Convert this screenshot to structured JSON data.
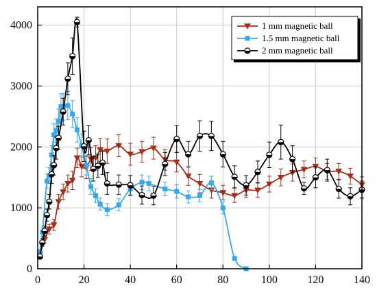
{
  "chart_data": {
    "type": "line",
    "title": "",
    "xlabel": "",
    "ylabel": "",
    "xlim": [
      0,
      140
    ],
    "ylim": [
      0,
      4300
    ],
    "x_ticks": [
      0,
      20,
      40,
      60,
      80,
      100,
      120,
      140
    ],
    "y_ticks": [
      0,
      1000,
      2000,
      3000,
      4000
    ],
    "grid": true,
    "legend_position": "top-right",
    "series": [
      {
        "name": "1 mm magnetic ball",
        "color": "#a0301c",
        "marker": "triangle-down",
        "points": [
          [
            1,
            230
          ],
          [
            3,
            480
          ],
          [
            5,
            650
          ],
          [
            7,
            720
          ],
          [
            9,
            1100
          ],
          [
            11,
            1260
          ],
          [
            13,
            1400
          ],
          [
            15,
            1450
          ],
          [
            17,
            1820
          ],
          [
            19,
            1680
          ],
          [
            21,
            1660
          ],
          [
            23,
            1800
          ],
          [
            25,
            1820
          ],
          [
            27,
            1950
          ],
          [
            30,
            1930
          ],
          [
            35,
            2020
          ],
          [
            40,
            1880
          ],
          [
            45,
            1920
          ],
          [
            50,
            1980
          ],
          [
            55,
            1790
          ],
          [
            60,
            1750
          ],
          [
            65,
            1520
          ],
          [
            70,
            1400
          ],
          [
            75,
            1290
          ],
          [
            80,
            1250
          ],
          [
            85,
            1200
          ],
          [
            90,
            1290
          ],
          [
            95,
            1290
          ],
          [
            100,
            1390
          ],
          [
            105,
            1500
          ],
          [
            110,
            1580
          ],
          [
            115,
            1630
          ],
          [
            120,
            1680
          ],
          [
            125,
            1600
          ],
          [
            130,
            1600
          ],
          [
            135,
            1520
          ],
          [
            140,
            1380
          ]
        ],
        "errors": [
          30,
          60,
          80,
          90,
          120,
          130,
          140,
          150,
          160,
          170,
          180,
          190,
          200,
          190,
          200,
          180,
          180,
          170,
          180,
          170,
          160,
          150,
          150,
          130,
          120,
          110,
          120,
          120,
          130,
          140,
          140,
          140,
          140,
          130,
          130,
          130,
          130
        ]
      },
      {
        "name": "1.5 mm magnetic ball",
        "color": "#3aa8e8",
        "marker": "square",
        "points": [
          [
            1,
            280
          ],
          [
            2,
            600
          ],
          [
            4,
            1440
          ],
          [
            5,
            1530
          ],
          [
            6,
            1870
          ],
          [
            7,
            2200
          ],
          [
            8,
            2270
          ],
          [
            9,
            2420
          ],
          [
            10,
            2660
          ],
          [
            11,
            2660
          ],
          [
            13,
            2680
          ],
          [
            15,
            2540
          ],
          [
            17,
            2280
          ],
          [
            19,
            2020
          ],
          [
            21,
            1700
          ],
          [
            23,
            1350
          ],
          [
            25,
            1200
          ],
          [
            27,
            1060
          ],
          [
            30,
            970
          ],
          [
            35,
            1050
          ],
          [
            40,
            1310
          ],
          [
            45,
            1420
          ],
          [
            48,
            1400
          ],
          [
            55,
            1310
          ],
          [
            60,
            1270
          ],
          [
            65,
            1180
          ],
          [
            70,
            1200
          ],
          [
            75,
            1410
          ],
          [
            80,
            1000
          ],
          [
            85,
            170
          ],
          [
            90,
            0
          ]
        ],
        "errors": [
          30,
          70,
          120,
          130,
          150,
          180,
          190,
          200,
          210,
          220,
          230,
          220,
          200,
          190,
          160,
          130,
          110,
          100,
          100,
          100,
          110,
          120,
          120,
          110,
          110,
          100,
          100,
          110,
          100,
          30,
          0
        ]
      },
      {
        "name": "2 mm magnetic ball",
        "color": "#000000",
        "marker": "circle-half",
        "points": [
          [
            1,
            200
          ],
          [
            2,
            430
          ],
          [
            3,
            620
          ],
          [
            4,
            880
          ],
          [
            5,
            1100
          ],
          [
            6,
            1550
          ],
          [
            7,
            1700
          ],
          [
            8,
            1980
          ],
          [
            9,
            2150
          ],
          [
            11,
            2580
          ],
          [
            13,
            3120
          ],
          [
            15,
            3490
          ],
          [
            17,
            4050
          ],
          [
            20,
            2010
          ],
          [
            22,
            2110
          ],
          [
            24,
            1640
          ],
          [
            26,
            1690
          ],
          [
            28,
            1740
          ],
          [
            30,
            1400
          ],
          [
            35,
            1380
          ],
          [
            40,
            1370
          ],
          [
            45,
            1210
          ],
          [
            50,
            1200
          ],
          [
            55,
            1720
          ],
          [
            60,
            2130
          ],
          [
            65,
            1880
          ],
          [
            70,
            2180
          ],
          [
            75,
            2180
          ],
          [
            80,
            1880
          ],
          [
            85,
            1510
          ],
          [
            90,
            1370
          ],
          [
            95,
            1590
          ],
          [
            100,
            1870
          ],
          [
            105,
            2080
          ],
          [
            110,
            1800
          ],
          [
            115,
            1320
          ],
          [
            120,
            1500
          ],
          [
            125,
            1620
          ],
          [
            130,
            1310
          ],
          [
            135,
            1190
          ],
          [
            140,
            1300
          ]
        ],
        "errors": [
          30,
          60,
          80,
          100,
          120,
          150,
          160,
          180,
          190,
          220,
          260,
          300,
          80,
          250,
          240,
          200,
          190,
          190,
          180,
          160,
          160,
          150,
          150,
          190,
          220,
          210,
          250,
          240,
          210,
          180,
          160,
          180,
          210,
          280,
          220,
          100,
          170,
          180,
          150,
          140,
          140
        ]
      }
    ]
  }
}
